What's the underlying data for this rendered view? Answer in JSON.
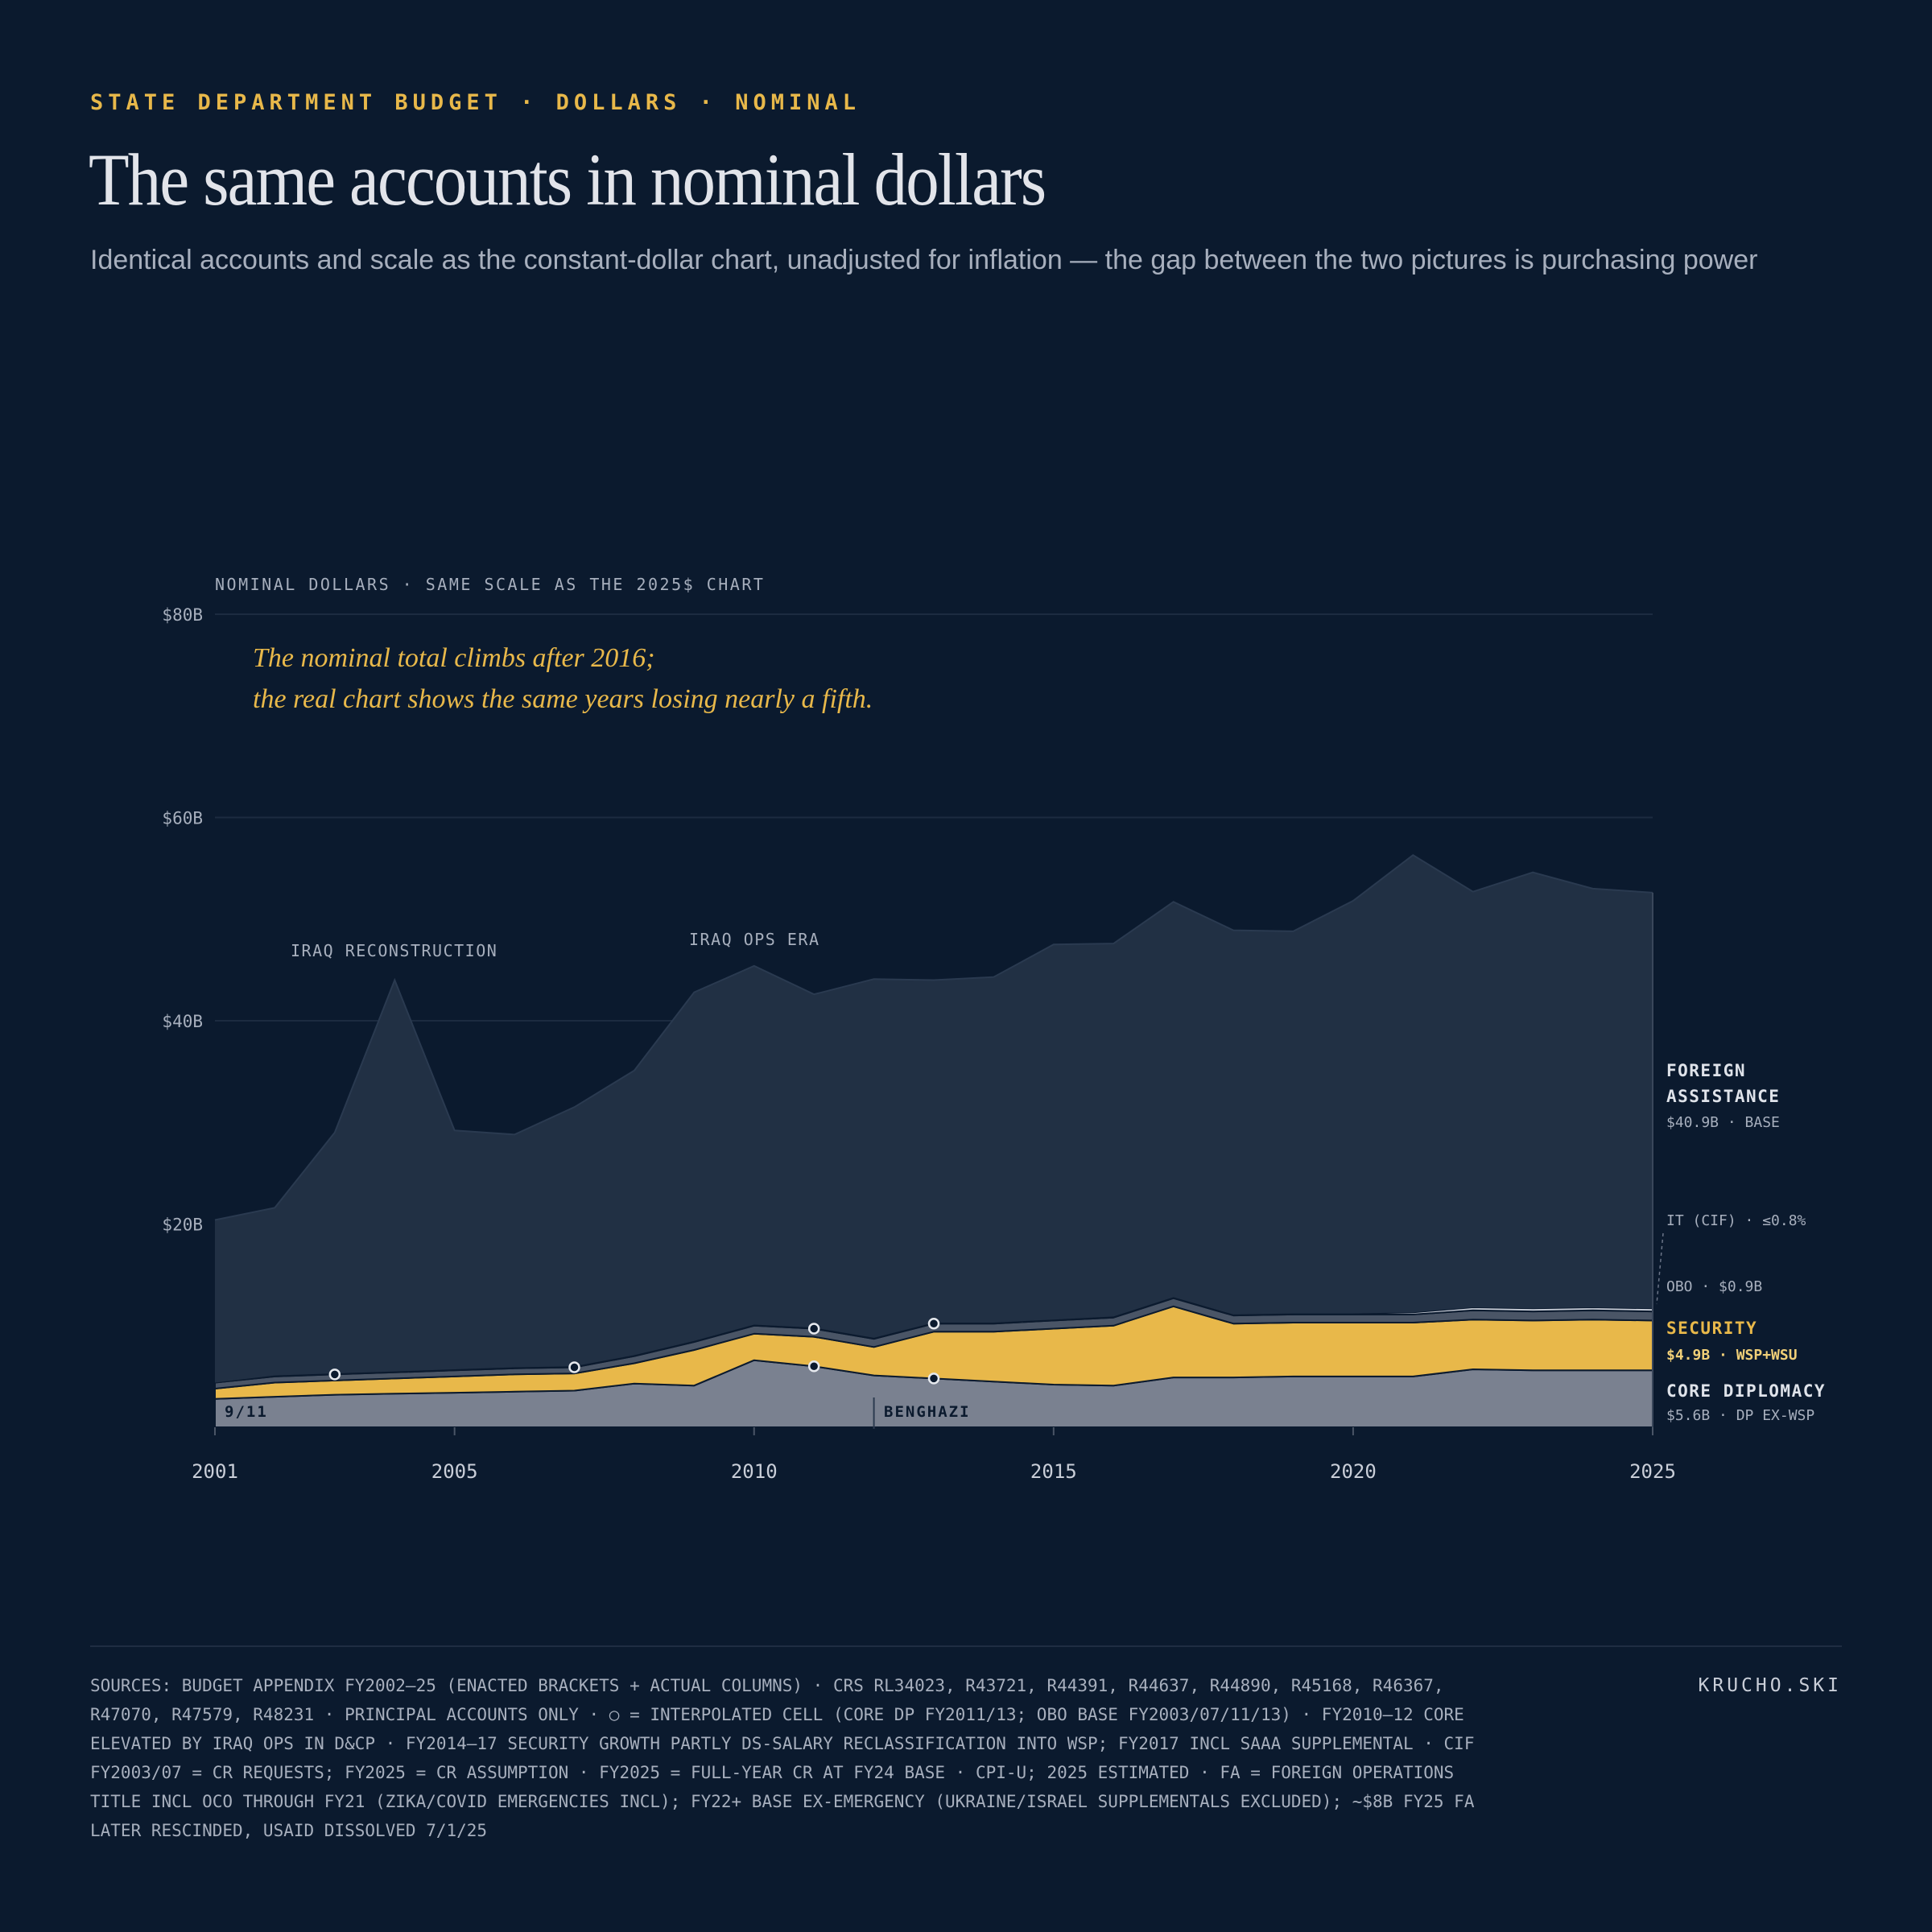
{
  "header": {
    "kicker": "STATE DEPARTMENT BUDGET · DOLLARS · NOMINAL",
    "title": "The same accounts in nominal dollars",
    "subtitle": "Identical accounts and scale as the constant-dollar chart, unadjusted for inflation — the gap between the two pictures is purchasing power"
  },
  "colors": {
    "background": "#0b1a2e",
    "foreign_assistance": "#213044",
    "it_cif": "#c9ced8",
    "obo": "#4a5566",
    "security": "#e8b84a",
    "core_diplomacy": "#7a8190",
    "accent": "#e8b84a"
  },
  "chart_data": {
    "type": "area",
    "stacked": true,
    "axis_note": "NOMINAL DOLLARS · SAME SCALE AS THE 2025$ CHART",
    "x": [
      2001,
      2002,
      2003,
      2004,
      2005,
      2006,
      2007,
      2008,
      2009,
      2010,
      2011,
      2012,
      2013,
      2014,
      2015,
      2016,
      2017,
      2018,
      2019,
      2020,
      2021,
      2022,
      2023,
      2024,
      2025
    ],
    "x_ticks": [
      2001,
      2005,
      2010,
      2015,
      2020,
      2025
    ],
    "x_tick_labels": [
      "2001",
      "2005",
      "2010",
      "2015",
      "2020",
      "2025"
    ],
    "ylim": [
      0,
      80
    ],
    "y_ticks": [
      20,
      40,
      60,
      80
    ],
    "y_tick_labels": [
      "$20B",
      "$40B",
      "$60B",
      "$80B"
    ],
    "grid": true,
    "series": [
      {
        "name": "CORE DIPLOMACY",
        "key": "core",
        "values": [
          2.8,
          3.0,
          3.2,
          3.3,
          3.4,
          3.5,
          3.6,
          4.3,
          4.1,
          6.6,
          6.0,
          5.1,
          4.8,
          4.5,
          4.2,
          4.1,
          4.9,
          4.9,
          5.0,
          5.0,
          5.0,
          5.7,
          5.6,
          5.6,
          5.6
        ]
      },
      {
        "name": "SECURITY",
        "key": "security",
        "values": [
          1.0,
          1.4,
          1.4,
          1.5,
          1.6,
          1.7,
          1.7,
          2.0,
          3.5,
          2.6,
          2.9,
          2.8,
          4.6,
          4.9,
          5.5,
          5.9,
          7.0,
          5.3,
          5.3,
          5.3,
          5.3,
          4.9,
          4.9,
          5.0,
          4.9
        ]
      },
      {
        "name": "OBO",
        "key": "obo",
        "values": [
          0.6,
          0.6,
          0.6,
          0.6,
          0.6,
          0.6,
          0.6,
          0.7,
          0.8,
          0.8,
          0.8,
          0.8,
          0.8,
          0.8,
          0.8,
          0.8,
          0.8,
          0.8,
          0.8,
          0.8,
          0.8,
          0.9,
          0.9,
          0.9,
          0.9
        ]
      },
      {
        "name": "IT (CIF)",
        "key": "it",
        "values": [
          0.0,
          0.1,
          0.1,
          0.1,
          0.1,
          0.1,
          0.1,
          0.1,
          0.1,
          0.1,
          0.1,
          0.1,
          0.1,
          0.1,
          0.1,
          0.1,
          0.1,
          0.1,
          0.1,
          0.1,
          0.2,
          0.3,
          0.3,
          0.3,
          0.3
        ]
      },
      {
        "name": "FOREIGN ASSISTANCE",
        "key": "fa",
        "values": [
          16.0,
          16.5,
          23.7,
          38.5,
          23.5,
          22.9,
          25.5,
          28.0,
          34.3,
          35.3,
          32.8,
          35.3,
          33.7,
          34.0,
          36.9,
          36.7,
          38.9,
          37.8,
          37.6,
          40.6,
          45.0,
          40.9,
          42.9,
          41.2,
          40.9
        ]
      }
    ],
    "interpolated_markers": [
      {
        "x": 2003,
        "series": "obo"
      },
      {
        "x": 2007,
        "series": "obo"
      },
      {
        "x": 2011,
        "series": "obo"
      },
      {
        "x": 2013,
        "series": "obo"
      },
      {
        "x": 2011,
        "series": "core"
      },
      {
        "x": 2013,
        "series": "core"
      }
    ],
    "annotations": {
      "headline_line1": "The nominal total climbs after 2016;",
      "headline_line2": "the real chart shows the same years losing nearly a fifth.",
      "iraq_reconstruction": "IRAQ RECONSTRUCTION",
      "iraq_ops": "IRAQ OPS ERA",
      "event_911": "9/11",
      "event_benghazi": "BENGHAZI"
    },
    "end_labels": {
      "fa_line1": "FOREIGN",
      "fa_line2": "ASSISTANCE",
      "fa_value": "$40.9B · BASE",
      "it": "IT (CIF) · ≤0.8%",
      "obo": "OBO · $0.9B",
      "security": "SECURITY",
      "security_value": "$4.9B · WSP+WSU",
      "core": "CORE DIPLOMACY",
      "core_value": "$5.6B · DP EX-WSP"
    }
  },
  "footer": {
    "sources_line1": "SOURCES: BUDGET APPENDIX FY2002–25 (ENACTED BRACKETS + ACTUAL COLUMNS) · CRS RL34023, R43721, R44391, R44637, R44890, R45168, R46367,",
    "sources_line2": "R47070, R47579, R48231 · PRINCIPAL ACCOUNTS ONLY · ○ = INTERPOLATED CELL (CORE DP FY2011/13; OBO BASE FY2003/07/11/13) · FY2010–12 CORE",
    "sources_line3": "ELEVATED BY IRAQ OPS IN D&CP · FY2014–17 SECURITY GROWTH PARTLY DS-SALARY RECLASSIFICATION INTO WSP; FY2017 INCL SAAA SUPPLEMENTAL · CIF",
    "sources_line4": "FY2003/07 = CR REQUESTS; FY2025 = CR ASSUMPTION · FY2025 = FULL-YEAR CR AT FY24 BASE · CPI-U; 2025 ESTIMATED · FA = FOREIGN OPERATIONS",
    "sources_line5": "TITLE INCL OCO THROUGH FY21 (ZIKA/COVID EMERGENCIES INCL); FY22+ BASE EX-EMERGENCY (UKRAINE/ISRAEL SUPPLEMENTALS EXCLUDED); ~$8B FY25 FA",
    "sources_line6": "LATER RESCINDED, USAID DISSOLVED 7/1/25",
    "brand": "KRUCHO.SKI"
  }
}
